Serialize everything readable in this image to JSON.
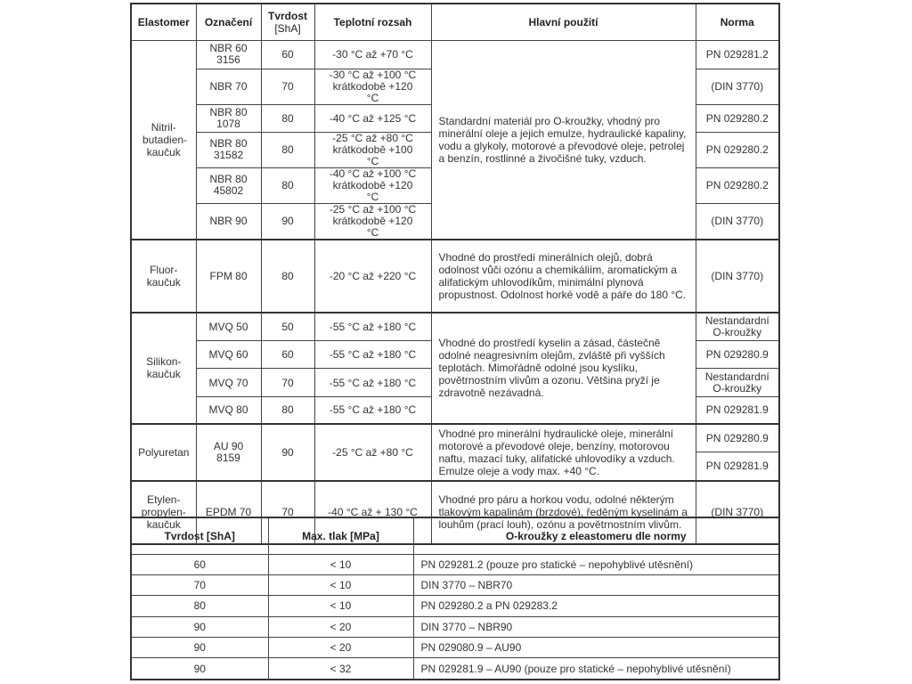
{
  "table1": {
    "headers": {
      "elastomer": "Elastomer",
      "code": "Označení",
      "hardness": "Tvrdost",
      "hardness_unit": "[ShA]",
      "temp": "Teplotní rozsah",
      "usage": "Hlavní použití",
      "norm": "Norma"
    },
    "groups": [
      {
        "elastomer": "Nitril-butadien-kaučuk",
        "usage": "Standardní materiál pro O-kroužky, vhodný pro minerální oleje a jejich emulze, hydraulické kapaliny, vodu a glykoly, motorové a převodové oleje, petrolej a benzín, rostlinné a živočišné tuky, vzduch.",
        "rows": [
          {
            "code": "NBR 60 3156",
            "hardness": "60",
            "temp": "-30 °C až +70 °C",
            "norm": "PN 029281.2"
          },
          {
            "code": "NBR 70",
            "hardness": "70",
            "temp": "-30 °C až +100 °C krátkodobě +120 °C",
            "norm": "(DIN 3770)"
          },
          {
            "code": "NBR 80 1078",
            "hardness": "80",
            "temp": "-40 °C až +125 °C",
            "norm": "PN 029280.2"
          },
          {
            "code": "NBR 80 31582",
            "hardness": "80",
            "temp": "-25 °C až +80 °C krátkodobě +100 °C",
            "norm": "PN 029280.2"
          },
          {
            "code": "NBR 80 45802",
            "hardness": "80",
            "temp": "-40 °C až +100 °C krátkodobě +120 °C",
            "norm": "PN 029280.2"
          },
          {
            "code": "NBR 90",
            "hardness": "90",
            "temp": "-25 °C až +100 °C krátkodobě +120 °C",
            "norm": "(DIN 3770)"
          }
        ]
      },
      {
        "elastomer": "Fluor-kaučuk",
        "usage": "Vhodné do prostředí minerálních olejů, dobrá odolnost vůči ozónu a chemikáliím, aromatickým a alifatickým uhlovodíkům, minimální plynová propustnost. Odolnost horké vodě a páře do 180 °C.",
        "rows": [
          {
            "code": "FPM 80",
            "hardness": "80",
            "temp": "-20 °C až +220 °C",
            "norm": "(DIN 3770)"
          }
        ]
      },
      {
        "elastomer": "Silikon-kaučuk",
        "usage": "Vhodné do prostředí kyselin a zásad, částečně odolné neagresivním olejům, zvláště při vyšších teplotách. Mimořádně odolné jsou kyslíku, povětrnostním vlivům a ozonu. Většina pryží je zdravotně nezávadná.",
        "rows": [
          {
            "code": "MVQ 50",
            "hardness": "50",
            "temp": "-55 °C až +180 °C",
            "norm": "Nestandardní O-kroužky"
          },
          {
            "code": "MVQ 60",
            "hardness": "60",
            "temp": "-55 °C až +180 °C",
            "norm": "PN 029280.9"
          },
          {
            "code": "MVQ 70",
            "hardness": "70",
            "temp": "-55 °C až +180 °C",
            "norm": "Nestandardní O-kroužky"
          },
          {
            "code": "MVQ 80",
            "hardness": "80",
            "temp": "-55 °C až +180 °C",
            "norm": "PN 029281.9"
          }
        ]
      },
      {
        "elastomer": "Polyuretan",
        "usage": "Vhodné pro minerální hydraulické oleje, minerální motorové a převodové oleje, benzíny, motorovou naftu, mazací tuky, alifatické uhlovodíky a vzduch. Emulze oleje a vody max. +40 °C.",
        "rows": [
          {
            "code": "AU 90 8159",
            "hardness": "90",
            "temp": "-25 °C až +80 °C",
            "norms": [
              "PN 029280.9",
              "PN 029281.9"
            ]
          }
        ]
      },
      {
        "elastomer": "Etylen-propylen-kaučuk",
        "usage": "Vhodné pro páru a horkou vodu, odolné některým tlakovým kapalinám (brzdové), ředěným kyselinám a louhům (prací louh), ozónu a povětrnostním vlivům.",
        "rows": [
          {
            "code": "EPDM 70",
            "hardness": "70",
            "temp": "-40 °C až + 130 °C",
            "norm": "(DIN 3770)"
          }
        ]
      }
    ]
  },
  "table2": {
    "headers": {
      "hardness": "Tvrdost [ShA]",
      "pressure": "Max. tlak [MPa]",
      "norm": "O-kroužky z eleastomeru dle normy"
    },
    "rows": [
      {
        "hardness": "60",
        "pressure": "< 10",
        "norm": "PN 029281.2 (pouze pro statické – nepohyblivé utěsnění)"
      },
      {
        "hardness": "70",
        "pressure": "< 10",
        "norm": "DIN 3770 – NBR70"
      },
      {
        "hardness": "80",
        "pressure": "< 10",
        "norm": "PN 029280.2 a PN 029283.2"
      },
      {
        "hardness": "90",
        "pressure": "< 20",
        "norm": "DIN 3770 – NBR90"
      },
      {
        "hardness": "90",
        "pressure": "< 20",
        "norm": "PN 029080.9 – AU90"
      },
      {
        "hardness": "90",
        "pressure": "< 32",
        "norm": "PN 029281.9 – AU90 (pouze pro statické – nepohyblivé utěsnění)"
      }
    ]
  }
}
